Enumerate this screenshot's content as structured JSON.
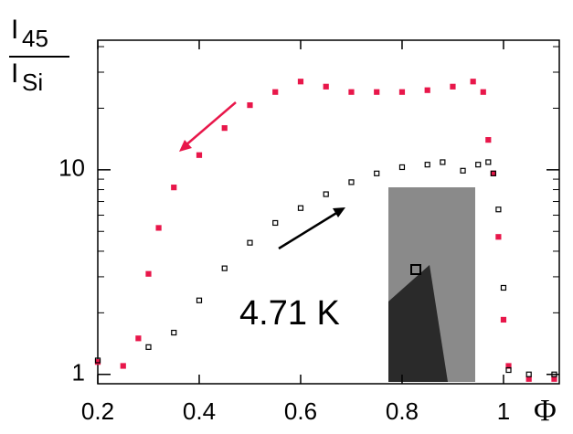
{
  "chart_data": {
    "type": "scatter",
    "ylabel": {
      "numerator": {
        "base": "I",
        "sub": "45"
      },
      "denominator": {
        "base": "I",
        "sub": "Si"
      }
    },
    "xlabel": "Φ",
    "annotation": "4.71 K",
    "log_y": true,
    "xlim": [
      0.2,
      1.11
    ],
    "ylim": [
      0.9,
      43
    ],
    "xticks": [
      0.2,
      0.4,
      0.6,
      0.8,
      1
    ],
    "yticks": [
      1,
      10
    ],
    "yminor": [
      2,
      3,
      4,
      5,
      6,
      7,
      8,
      9,
      20,
      30,
      40
    ],
    "series": [
      {
        "color": "#e8174a",
        "marker": "filled",
        "x": [
          0.2,
          0.25,
          0.28,
          0.3,
          0.32,
          0.35,
          0.4,
          0.45,
          0.5,
          0.55,
          0.6,
          0.65,
          0.7,
          0.75,
          0.8,
          0.85,
          0.9,
          0.94,
          0.96,
          0.97,
          0.98,
          0.99,
          1.0,
          1.01,
          1.05,
          1.1
        ],
        "values": [
          1.15,
          1.1,
          1.5,
          3.1,
          5.2,
          8.2,
          11.8,
          16,
          20.7,
          24,
          27,
          25.5,
          24,
          24,
          24,
          24.5,
          25.5,
          27,
          24,
          14,
          9.6,
          4.7,
          1.85,
          1.1,
          0.95,
          0.95
        ]
      },
      {
        "color": "#000000",
        "marker": "open",
        "x": [
          0.2,
          0.3,
          0.35,
          0.4,
          0.45,
          0.5,
          0.55,
          0.6,
          0.65,
          0.7,
          0.75,
          0.8,
          0.85,
          0.88,
          0.92,
          0.95,
          0.97,
          0.98,
          0.99,
          1.0,
          1.01,
          1.05,
          1.1
        ],
        "values": [
          1.17,
          1.36,
          1.6,
          2.3,
          3.3,
          4.4,
          5.5,
          6.5,
          7.6,
          8.7,
          9.6,
          10.3,
          10.6,
          10.9,
          9.9,
          10.6,
          10.9,
          9.6,
          6.4,
          2.65,
          1.05,
          1.0,
          1.0
        ]
      }
    ]
  }
}
